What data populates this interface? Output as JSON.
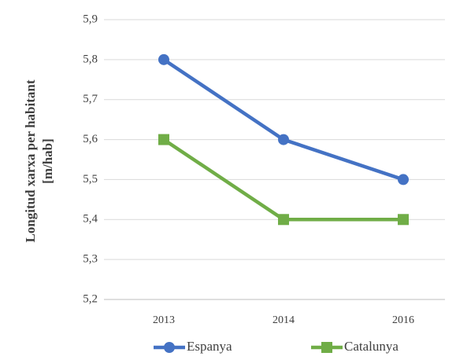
{
  "chart_data": {
    "type": "line",
    "ylabel": [
      "Longitud xarxa per habitant",
      "[m/hab]"
    ],
    "categories": [
      "2013",
      "2014",
      "2016"
    ],
    "series": [
      {
        "name": "Espanya",
        "color": "#4472c4",
        "marker": "circle",
        "values": [
          5.8,
          5.6,
          5.5
        ]
      },
      {
        "name": "Catalunya",
        "color": "#70ad47",
        "marker": "square",
        "values": [
          5.6,
          5.4,
          5.4
        ]
      }
    ],
    "ylim": [
      5.2,
      5.9
    ],
    "yticks": [
      {
        "value": 5.2,
        "label": "5,2"
      },
      {
        "value": 5.3,
        "label": "5,3"
      },
      {
        "value": 5.4,
        "label": "5,4"
      },
      {
        "value": 5.5,
        "label": "5,5"
      },
      {
        "value": 5.6,
        "label": "5,6"
      },
      {
        "value": 5.7,
        "label": "5,7"
      },
      {
        "value": 5.8,
        "label": "5,8"
      },
      {
        "value": 5.9,
        "label": "5,9"
      }
    ],
    "grid": true,
    "legend": "bottom"
  }
}
